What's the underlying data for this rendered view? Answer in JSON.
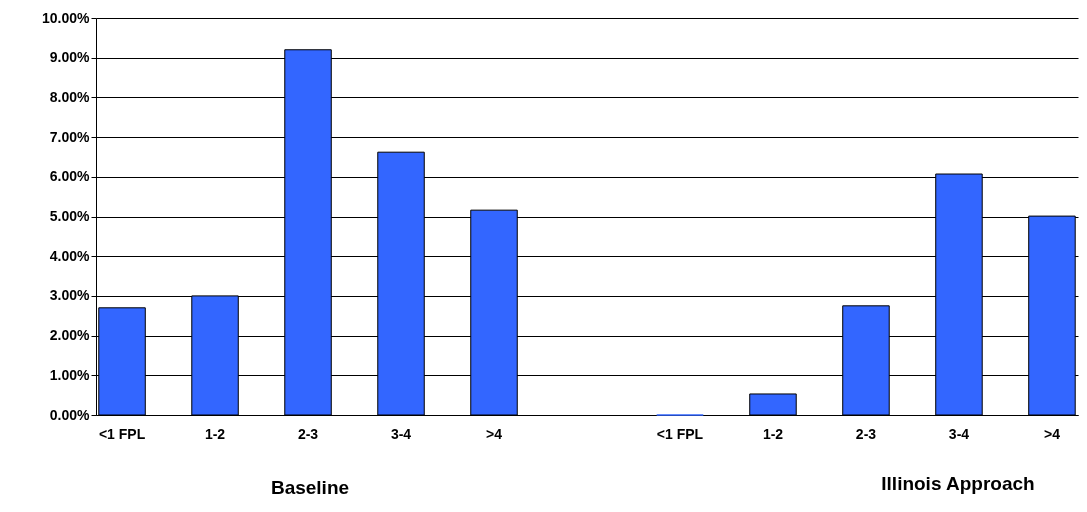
{
  "chart_data": {
    "type": "bar",
    "categories": [
      "<1 FPL",
      "1-2",
      "2-3",
      "3-4",
      ">4",
      null,
      "<1 FPL",
      "1-2",
      "2-3",
      "3-4",
      ">4"
    ],
    "values": [
      2.7,
      3.0,
      9.2,
      6.62,
      5.16,
      null,
      0,
      0.53,
      2.75,
      6.07,
      5.01
    ],
    "color": "#3366ff",
    "ylim": [
      0,
      10
    ],
    "yticks": [
      {
        "value": 0,
        "label": "0.00%"
      },
      {
        "value": 1,
        "label": "1.00%"
      },
      {
        "value": 2,
        "label": "2.00%"
      },
      {
        "value": 3,
        "label": "3.00%"
      },
      {
        "value": 4,
        "label": "4.00%"
      },
      {
        "value": 5,
        "label": "5.00%"
      },
      {
        "value": 6,
        "label": "6.00%"
      },
      {
        "value": 7,
        "label": "7.00%"
      },
      {
        "value": 8,
        "label": "8.00%"
      },
      {
        "value": 9,
        "label": "9.00%"
      },
      {
        "value": 10,
        "label": "10.00%"
      }
    ],
    "grid": "y",
    "annotations": [
      "Baseline",
      "Illinois Approach"
    ]
  }
}
